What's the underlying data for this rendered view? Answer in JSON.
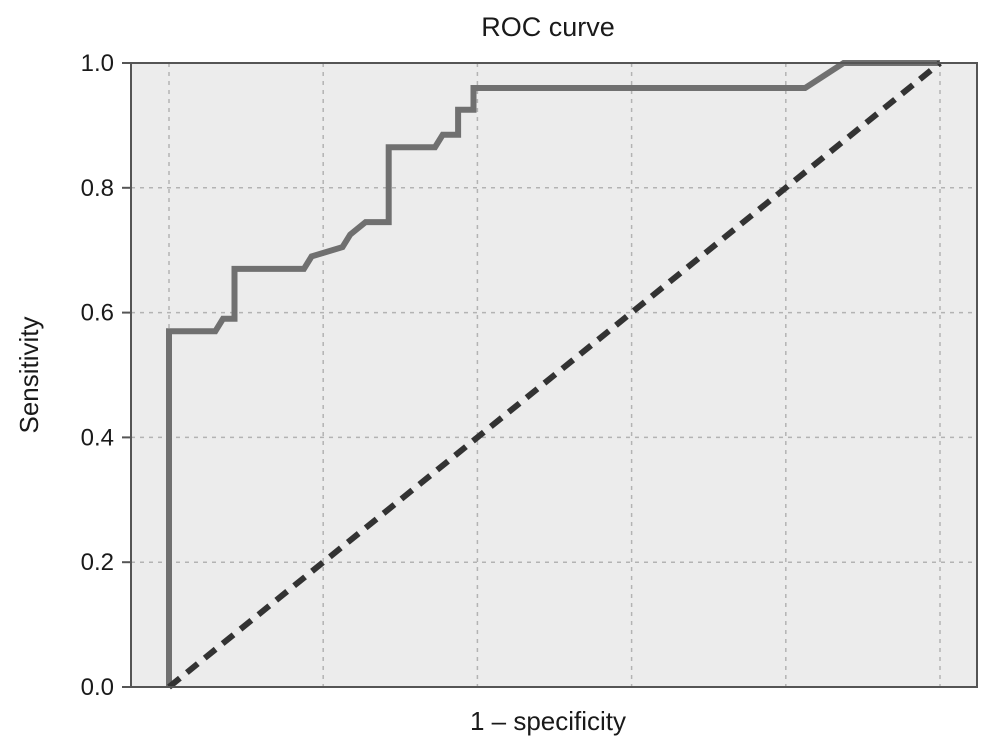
{
  "chart_data": {
    "type": "line",
    "title": "ROC curve",
    "xlabel": "1 – specificity",
    "ylabel": "Sensitivity",
    "xlim": [
      0,
      1
    ],
    "ylim": [
      0,
      1
    ],
    "y_ticks": [
      "0.0",
      "0.2",
      "0.4",
      "0.6",
      "0.8",
      "1.0"
    ],
    "x_ticks_shown": false,
    "grid": true,
    "background": "#ececec",
    "series": [
      {
        "style": "solid",
        "color": "#707070",
        "points": [
          [
            0.0,
            0.0
          ],
          [
            0.0,
            0.57
          ],
          [
            0.06,
            0.57
          ],
          [
            0.07,
            0.59
          ],
          [
            0.085,
            0.59
          ],
          [
            0.085,
            0.67
          ],
          [
            0.175,
            0.67
          ],
          [
            0.185,
            0.69
          ],
          [
            0.225,
            0.705
          ],
          [
            0.235,
            0.725
          ],
          [
            0.255,
            0.745
          ],
          [
            0.285,
            0.745
          ],
          [
            0.285,
            0.865
          ],
          [
            0.345,
            0.865
          ],
          [
            0.355,
            0.885
          ],
          [
            0.375,
            0.885
          ],
          [
            0.375,
            0.925
          ],
          [
            0.395,
            0.925
          ],
          [
            0.395,
            0.96
          ],
          [
            0.415,
            0.96
          ],
          [
            0.825,
            0.96
          ],
          [
            0.875,
            1.0
          ],
          [
            1.0,
            1.0
          ]
        ]
      },
      {
        "style": "dashed",
        "color": "#333333",
        "points": [
          [
            0,
            0
          ],
          [
            1,
            1
          ]
        ]
      }
    ]
  }
}
